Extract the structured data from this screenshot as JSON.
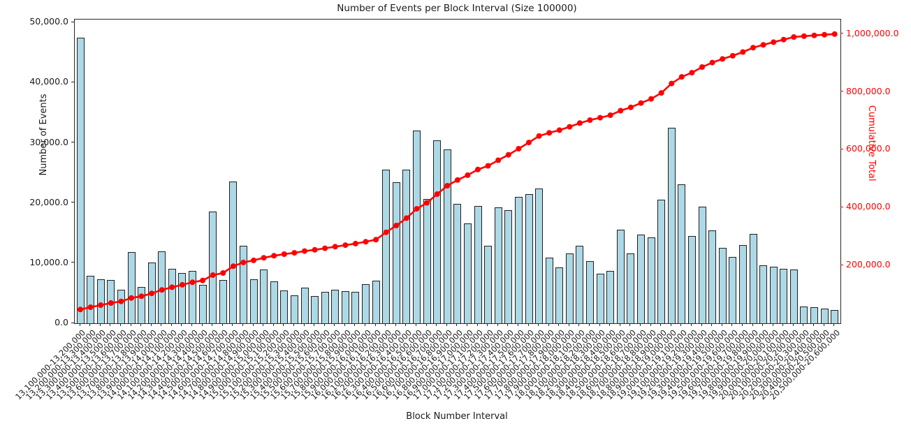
{
  "title": "Number of Events per Block Interval (Size 100000)",
  "axes": {
    "xlabel": "Block Number Interval",
    "ylabel_left": "Number of Events",
    "ylabel_right": "Cumulative Total"
  },
  "colors": {
    "bar_fill": "#add8e6",
    "bar_edge": "#1f1f1f",
    "line": "#ff0000",
    "right_axis_text": "#ff0000",
    "axis_text": "#1a1a1a",
    "spine": "#262626"
  },
  "chart_data": {
    "type": "bar",
    "title": "Number of Events per Block Interval (Size 100000)",
    "xlabel": "Block Number Interval",
    "ylabel": "Number of Events",
    "ylabel_right": "Cumulative Total",
    "grid": false,
    "legend": "none",
    "ylim_left": [
      0,
      50500
    ],
    "ylim_right": [
      0,
      1050000
    ],
    "yticks_left": [
      {
        "v": 0,
        "label": "0.0"
      },
      {
        "v": 10000,
        "label": "10,000.0"
      },
      {
        "v": 20000,
        "label": "20,000.0"
      },
      {
        "v": 30000,
        "label": "30,000.0"
      },
      {
        "v": 40000,
        "label": "40,000.0"
      },
      {
        "v": 50000,
        "label": "50,000.0"
      }
    ],
    "yticks_right": [
      {
        "v": 200000,
        "label": "200,000.0"
      },
      {
        "v": 400000,
        "label": "400,000.0"
      },
      {
        "v": 600000,
        "label": "600,000.0"
      },
      {
        "v": 800000,
        "label": "800,000.0"
      },
      {
        "v": 1000000,
        "label": "1,000,000.0"
      }
    ],
    "categories": [
      "13,100,000-13,200,000",
      "13,200,000-13,300,000",
      "13,300,000-13,400,000",
      "13,400,000-13,500,000",
      "13,500,000-13,600,000",
      "13,600,000-13,700,000",
      "13,700,000-13,800,000",
      "13,800,000-13,900,000",
      "13,900,000-14,000,000",
      "14,000,000-14,100,000",
      "14,100,000-14,200,000",
      "14,200,000-14,300,000",
      "14,300,000-14,400,000",
      "14,400,000-14,500,000",
      "14,500,000-14,600,000",
      "14,600,000-14,700,000",
      "14,700,000-14,800,000",
      "14,800,000-14,900,000",
      "14,900,000-15,000,000",
      "15,000,000-15,100,000",
      "15,100,000-15,200,000",
      "15,200,000-15,300,000",
      "15,300,000-15,400,000",
      "15,400,000-15,500,000",
      "15,500,000-15,600,000",
      "15,600,000-15,700,000",
      "15,700,000-15,800,000",
      "15,800,000-15,900,000",
      "15,900,000-16,000,000",
      "16,000,000-16,100,000",
      "16,100,000-16,200,000",
      "16,200,000-16,300,000",
      "16,300,000-16,400,000",
      "16,400,000-16,500,000",
      "16,500,000-16,600,000",
      "16,600,000-16,700,000",
      "16,700,000-16,800,000",
      "16,800,000-16,900,000",
      "16,900,000-17,000,000",
      "17,000,000-17,100,000",
      "17,100,000-17,200,000",
      "17,200,000-17,300,000",
      "17,300,000-17,400,000",
      "17,400,000-17,500,000",
      "17,500,000-17,600,000",
      "17,600,000-17,700,000",
      "17,700,000-17,800,000",
      "17,800,000-17,900,000",
      "17,900,000-18,000,000",
      "18,000,000-18,100,000",
      "18,100,000-18,200,000",
      "18,200,000-18,300,000",
      "18,300,000-18,400,000",
      "18,400,000-18,500,000",
      "18,500,000-18,600,000",
      "18,600,000-18,700,000",
      "18,700,000-18,800,000",
      "18,800,000-18,900,000",
      "18,900,000-19,000,000",
      "19,000,000-19,100,000",
      "19,100,000-19,200,000",
      "19,200,000-19,300,000",
      "19,300,000-19,400,000",
      "19,400,000-19,500,000",
      "19,500,000-19,600,000",
      "19,600,000-19,700,000",
      "19,700,000-19,800,000",
      "19,800,000-19,900,000",
      "19,900,000-20,000,000",
      "20,000,000-20,100,000",
      "20,100,000-20,200,000",
      "20,200,000-20,300,000",
      "20,300,000-20,400,000",
      "20,400,000-20,500,000",
      "20,500,000-20,600,000"
    ],
    "series": [
      {
        "name": "Number of Events",
        "type": "bar",
        "axis": "left",
        "values": [
          47500,
          7900,
          7300,
          7200,
          5600,
          11800,
          6000,
          10100,
          12000,
          9100,
          8400,
          8700,
          6400,
          18600,
          7200,
          23600,
          12900,
          7300,
          8900,
          7000,
          5500,
          4600,
          5900,
          4500,
          5200,
          5600,
          5400,
          5200,
          6500,
          7100,
          25600,
          23400,
          25500,
          32000,
          20700,
          30400,
          28900,
          19900,
          16600,
          19500,
          12900,
          19300,
          18800,
          21000,
          21500,
          22400,
          10900,
          9300,
          11600,
          12900,
          10300,
          8300,
          8700,
          15600,
          11600,
          14800,
          14300,
          20600,
          32500,
          23100,
          14500,
          19400,
          15500,
          12500,
          11000,
          13000,
          14900,
          9600,
          9400,
          9100,
          8900,
          2800,
          2700,
          2400,
          2200
        ]
      },
      {
        "name": "Cumulative Total",
        "type": "line",
        "axis": "right",
        "values": [
          47500,
          55400,
          62700,
          69900,
          75500,
          87300,
          93300,
          103400,
          115400,
          124500,
          132900,
          141600,
          148000,
          166600,
          173800,
          197400,
          210300,
          217600,
          226500,
          233500,
          239000,
          243600,
          249500,
          254000,
          259200,
          264800,
          270200,
          275400,
          281900,
          289000,
          314600,
          338000,
          363500,
          395500,
          416200,
          446600,
          475500,
          495400,
          512000,
          531500,
          544400,
          563700,
          582500,
          603500,
          625000,
          647400,
          658300,
          667600,
          679200,
          692100,
          702400,
          710700,
          719400,
          735000,
          746600,
          761400,
          775700,
          796300,
          828800,
          851900,
          866400,
          885800,
          901300,
          913800,
          924800,
          937800,
          952700,
          962300,
          971700,
          980800,
          989700,
          992500,
          995200,
          997600,
          999800
        ]
      }
    ]
  }
}
